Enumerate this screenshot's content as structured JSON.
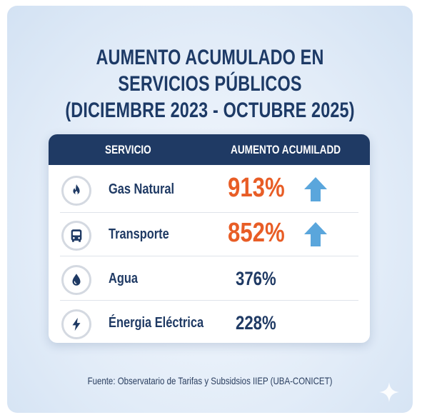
{
  "title_line1": "AUMENTO ACUMULADO EN SERVICIOS PÚBLICOS",
  "title_line2": "(DICIEMBRE 2023 - OCTUBRE 2025)",
  "header": {
    "service": "SERVICIO",
    "increase": "AUMENTO ACUMILADD"
  },
  "footer": "Fuente: Observatario de Tarifas y Subsidsios IIEP (UBA-CONICET)",
  "colors": {
    "navy": "#1f3a64",
    "highlight": "#e85d26",
    "arrow": "#5aa6dc"
  },
  "chart_data": {
    "type": "table",
    "columns": [
      "SERVICIO",
      "AUMENTO ACUMILADD"
    ],
    "rows": [
      {
        "icon": "flame-icon",
        "service": "Gas Natural",
        "value": 913,
        "display": "913%",
        "highlight": true,
        "arrow": "up-arrow-icon"
      },
      {
        "icon": "bus-icon",
        "service": "Transporte",
        "value": 852,
        "display": "852%",
        "highlight": true,
        "arrow": "up-arrow-icon"
      },
      {
        "icon": "water-drop-icon",
        "service": "Agua",
        "value": 376,
        "display": "376%",
        "highlight": false
      },
      {
        "icon": "lightning-icon",
        "service": "Énergia Eléctrica",
        "value": 228,
        "display": "228%",
        "highlight": false
      }
    ]
  }
}
